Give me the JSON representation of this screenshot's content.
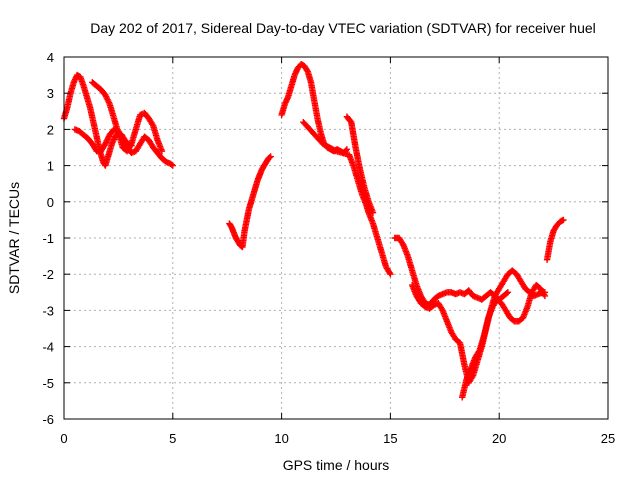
{
  "chart_data": {
    "type": "scatter",
    "title": "Day 202 of 2017, Sidereal Day-to-day VTEC variation (SDTVAR) for receiver huel",
    "xlabel": "GPS time / hours",
    "ylabel": "SDTVAR / TECUs",
    "xlim": [
      0,
      25
    ],
    "ylim": [
      -6,
      4
    ],
    "xticks": [
      "0",
      "5",
      "10",
      "15",
      "20",
      "25"
    ],
    "yticks": [
      "-6",
      "-5",
      "-4",
      "-3",
      "-2",
      "-1",
      "0",
      "1",
      "2",
      "3",
      "4"
    ],
    "grid": true,
    "marker": "plus",
    "color": "#ff0000",
    "series": [
      {
        "x": [
          0.0,
          0.15,
          0.3,
          0.45,
          0.6,
          0.75,
          0.9,
          1.05,
          1.2,
          1.35,
          1.5,
          1.65,
          1.8,
          1.9,
          2.05,
          2.2,
          2.35,
          2.5,
          2.65,
          2.8,
          2.95,
          3.1
        ],
        "values": [
          2.3,
          2.6,
          3.0,
          3.3,
          3.5,
          3.45,
          3.2,
          2.9,
          2.6,
          2.2,
          1.8,
          1.4,
          1.1,
          1.0,
          1.3,
          1.6,
          1.8,
          1.9,
          1.85,
          1.7,
          1.6,
          1.55
        ]
      },
      {
        "x": [
          0.5,
          0.7,
          0.9,
          1.1,
          1.3,
          1.5,
          1.7,
          1.9,
          2.1,
          2.3,
          2.5,
          2.7,
          2.9,
          3.1,
          3.3,
          3.5,
          3.7,
          3.9,
          4.1,
          4.3,
          4.5,
          4.7,
          4.9,
          5.0
        ],
        "values": [
          2.0,
          1.95,
          1.85,
          1.75,
          1.6,
          1.4,
          1.4,
          1.6,
          1.85,
          2.0,
          1.95,
          1.7,
          1.5,
          1.35,
          1.4,
          1.6,
          1.8,
          1.7,
          1.5,
          1.35,
          1.2,
          1.1,
          1.05,
          1.0
        ]
      },
      {
        "x": [
          1.3,
          1.5,
          1.7,
          1.9,
          2.1,
          2.3,
          2.5,
          2.7,
          2.9,
          3.1,
          3.3,
          3.5,
          3.7,
          3.9,
          4.1,
          4.3,
          4.5
        ],
        "values": [
          3.3,
          3.2,
          3.1,
          2.95,
          2.7,
          2.3,
          1.9,
          1.5,
          1.4,
          1.6,
          2.0,
          2.4,
          2.45,
          2.3,
          2.1,
          1.7,
          1.4
        ]
      },
      {
        "x": [
          7.6,
          7.7,
          7.8,
          7.9,
          8.0,
          8.1,
          8.2,
          8.3,
          8.4,
          8.5,
          8.6,
          8.7,
          8.8,
          8.9,
          9.0,
          9.1,
          9.2,
          9.3,
          9.4,
          9.5
        ],
        "values": [
          -0.6,
          -0.7,
          -0.85,
          -1.0,
          -1.1,
          -1.2,
          -1.25,
          -0.8,
          -0.5,
          -0.2,
          0.0,
          0.2,
          0.4,
          0.6,
          0.75,
          0.9,
          1.0,
          1.1,
          1.2,
          1.25
        ]
      },
      {
        "x": [
          10.0,
          10.15,
          10.3,
          10.45,
          10.6,
          10.75,
          10.9,
          11.05,
          11.2,
          11.35,
          11.5,
          11.65,
          11.8,
          11.95,
          12.1,
          12.25,
          12.4,
          12.55,
          12.7,
          12.85,
          13.0
        ],
        "values": [
          2.4,
          2.7,
          2.9,
          3.2,
          3.5,
          3.7,
          3.8,
          3.75,
          3.6,
          3.3,
          2.8,
          2.3,
          1.9,
          1.6,
          1.5,
          1.45,
          1.4,
          1.45,
          1.4,
          1.35,
          1.45
        ]
      },
      {
        "x": [
          11.0,
          11.3,
          11.6,
          11.9,
          12.2,
          12.5,
          12.8,
          13.1,
          13.3,
          13.5,
          13.7,
          13.9,
          14.0,
          14.2,
          14.4,
          14.6,
          14.8,
          15.0
        ],
        "values": [
          2.2,
          2.0,
          1.8,
          1.6,
          1.5,
          1.4,
          1.35,
          1.3,
          1.0,
          0.6,
          0.2,
          -0.1,
          -0.3,
          -0.6,
          -1.0,
          -1.4,
          -1.8,
          -2.0
        ]
      },
      {
        "x": [
          13.0,
          13.2,
          13.4,
          13.6,
          13.8,
          14.0,
          14.2
        ],
        "values": [
          2.35,
          2.2,
          1.5,
          0.9,
          0.4,
          0.0,
          -0.3
        ]
      },
      {
        "x": [
          15.2,
          15.4,
          15.6,
          15.8,
          16.0,
          16.2,
          16.4,
          16.6,
          16.8,
          17.0,
          17.2,
          17.4,
          17.6,
          17.8,
          18.0,
          18.2,
          18.4,
          18.6,
          18.8,
          19.0,
          19.2,
          19.4,
          19.6,
          19.8,
          20.0,
          20.2,
          20.4
        ],
        "values": [
          -1.0,
          -1.0,
          -1.2,
          -1.5,
          -1.9,
          -2.3,
          -2.6,
          -2.8,
          -2.85,
          -2.7,
          -2.6,
          -2.55,
          -2.5,
          -2.5,
          -2.55,
          -2.5,
          -2.55,
          -2.45,
          -2.6,
          -2.65,
          -2.7,
          -2.6,
          -2.5,
          -2.6,
          -2.7,
          -2.6,
          -2.5
        ]
      },
      {
        "x": [
          16.0,
          16.2,
          16.4,
          16.6,
          16.8,
          17.0,
          17.2,
          17.4,
          17.6,
          17.8,
          18.0,
          18.2,
          18.4,
          18.6,
          18.8,
          19.0,
          19.2,
          19.4,
          19.6,
          19.8,
          20.0,
          20.2,
          20.4,
          20.6,
          20.8,
          21.0,
          21.2,
          21.4,
          21.6,
          21.8,
          22.0,
          22.1
        ],
        "values": [
          -2.3,
          -2.6,
          -2.8,
          -2.9,
          -2.95,
          -2.85,
          -2.8,
          -3.0,
          -3.3,
          -3.6,
          -3.8,
          -3.9,
          -4.5,
          -5.0,
          -4.8,
          -4.4,
          -4.0,
          -3.5,
          -3.0,
          -2.6,
          -2.4,
          -2.2,
          -2.0,
          -1.9,
          -2.0,
          -2.2,
          -2.4,
          -2.5,
          -2.6,
          -2.55,
          -2.5,
          -2.5
        ]
      },
      {
        "x": [
          18.3,
          18.5,
          18.7,
          18.9,
          19.1,
          19.3,
          19.5,
          19.7,
          19.9,
          20.1,
          20.3,
          20.5,
          20.7,
          20.9,
          21.1,
          21.3,
          21.5,
          21.7,
          21.9,
          22.1
        ],
        "values": [
          -5.4,
          -4.9,
          -4.6,
          -4.3,
          -4.1,
          -3.7,
          -3.2,
          -2.9,
          -2.7,
          -2.8,
          -3.0,
          -3.2,
          -3.3,
          -3.3,
          -3.2,
          -2.9,
          -2.5,
          -2.3,
          -2.4,
          -2.6
        ]
      },
      {
        "x": [
          22.2,
          22.35,
          22.5,
          22.65,
          22.8,
          22.95
        ],
        "values": [
          -1.6,
          -1.1,
          -0.8,
          -0.65,
          -0.55,
          -0.5
        ]
      }
    ]
  }
}
